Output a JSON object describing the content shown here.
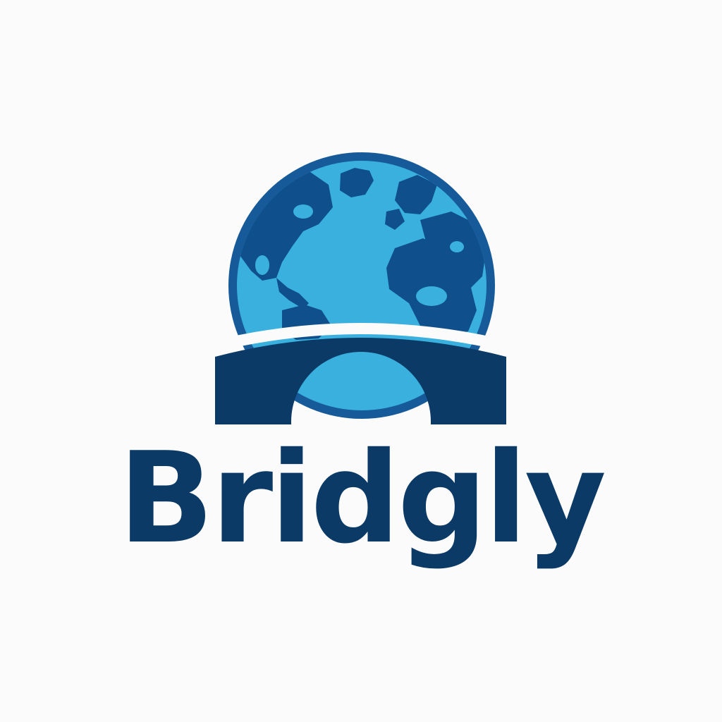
{
  "brand": {
    "name": "Bridgly"
  },
  "colors": {
    "background": "#fbfbfb",
    "navy": "#0b3a66",
    "globe_ocean": "#3ab0de",
    "globe_rim": "#175a9a",
    "globe_land": "#0f4f8c"
  },
  "icons": {
    "globe": "globe-icon",
    "bridge": "bridge-icon"
  }
}
